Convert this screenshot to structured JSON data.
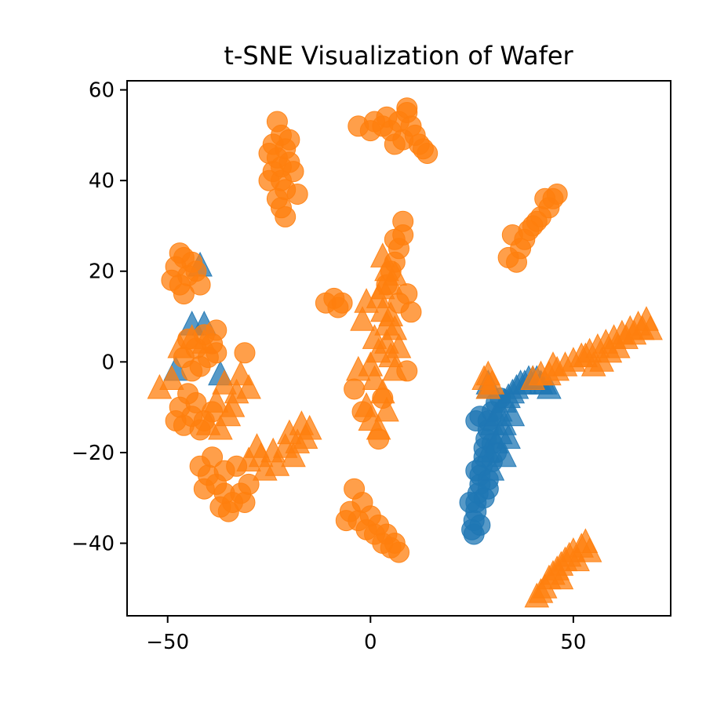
{
  "chart_data": {
    "type": "scatter",
    "title": "t-SNE Visualization of Wafer",
    "xlabel": "",
    "ylabel": "",
    "xlim": [
      -60,
      74
    ],
    "ylim": [
      -56,
      62
    ],
    "xticks": [
      -50,
      0,
      50
    ],
    "yticks": [
      -40,
      -20,
      0,
      20,
      40,
      60
    ],
    "xtick_labels": [
      "−50",
      "0",
      "50"
    ],
    "ytick_labels": [
      "−40",
      "−20",
      "0",
      "20",
      "40",
      "60"
    ],
    "grid": false,
    "legend": "none",
    "series": [
      {
        "color": "#1f77b4",
        "marker": "circle",
        "points": [
          [
            25,
            -37
          ],
          [
            25.5,
            -35
          ],
          [
            26,
            -33
          ],
          [
            26,
            -31
          ],
          [
            26.5,
            -29
          ],
          [
            27,
            -27
          ],
          [
            27,
            -25
          ],
          [
            27.5,
            -23
          ],
          [
            28,
            -21
          ],
          [
            28,
            -19
          ],
          [
            28.5,
            -17
          ],
          [
            29,
            -15
          ],
          [
            29,
            -13
          ],
          [
            26,
            -13
          ],
          [
            27,
            -12
          ],
          [
            30,
            -11
          ],
          [
            31,
            -9
          ],
          [
            32,
            -8
          ],
          [
            25.5,
            -38
          ],
          [
            27,
            -36
          ],
          [
            28,
            -30
          ],
          [
            29,
            -26
          ],
          [
            30,
            -22
          ],
          [
            24.5,
            -31
          ],
          [
            26,
            -24
          ],
          [
            29,
            -28
          ],
          [
            30,
            -18
          ],
          [
            31,
            -20
          ]
        ]
      },
      {
        "color": "#1f77b4",
        "marker": "triangle",
        "points": [
          [
            30,
            -14
          ],
          [
            31,
            -12
          ],
          [
            32,
            -11
          ],
          [
            33,
            -9
          ],
          [
            34,
            -8
          ],
          [
            35,
            -7
          ],
          [
            36,
            -6
          ],
          [
            37,
            -5
          ],
          [
            38,
            -5
          ],
          [
            39,
            -4
          ],
          [
            40,
            -4
          ],
          [
            41,
            -4
          ],
          [
            42,
            -5
          ],
          [
            43,
            -5
          ],
          [
            44,
            -6
          ],
          [
            29,
            -20
          ],
          [
            30,
            -24
          ],
          [
            31,
            -18
          ],
          [
            32,
            -16
          ],
          [
            33,
            -14
          ],
          [
            29,
            -6
          ],
          [
            29,
            -5
          ],
          [
            33,
            -21
          ],
          [
            35,
            -12
          ],
          [
            34,
            -17
          ],
          [
            -37,
            -3
          ],
          [
            -44,
            8
          ],
          [
            -48,
            -2
          ],
          [
            -42,
            21
          ],
          [
            -41,
            8
          ]
        ]
      },
      {
        "color": "#ff7f0e",
        "marker": "circle",
        "points": [
          [
            -23,
            53
          ],
          [
            -22,
            50
          ],
          [
            -24,
            48
          ],
          [
            -21,
            47
          ],
          [
            -23,
            45
          ],
          [
            -20,
            44
          ],
          [
            -24,
            42
          ],
          [
            -22,
            40
          ],
          [
            -21,
            38
          ],
          [
            -23,
            36
          ],
          [
            -22,
            34
          ],
          [
            -21,
            32
          ],
          [
            -25,
            46
          ],
          [
            -19,
            42
          ],
          [
            -20,
            49
          ],
          [
            -25,
            40
          ],
          [
            -18,
            37
          ],
          [
            -22,
            43
          ],
          [
            -3,
            52
          ],
          [
            0,
            51
          ],
          [
            3,
            52
          ],
          [
            5,
            51
          ],
          [
            7,
            53
          ],
          [
            9,
            55
          ],
          [
            10,
            52
          ],
          [
            11,
            50
          ],
          [
            12,
            48
          ],
          [
            13,
            47
          ],
          [
            8,
            49
          ],
          [
            6,
            48
          ],
          [
            1,
            53
          ],
          [
            9,
            56
          ],
          [
            14,
            46
          ],
          [
            4,
            54
          ],
          [
            36,
            22
          ],
          [
            37,
            25
          ],
          [
            38,
            27
          ],
          [
            39,
            29
          ],
          [
            40,
            30
          ],
          [
            42,
            32
          ],
          [
            44,
            34
          ],
          [
            45,
            36
          ],
          [
            46,
            37
          ],
          [
            43,
            36
          ],
          [
            34,
            23
          ],
          [
            35,
            28
          ],
          [
            41,
            31
          ],
          [
            -46,
            23
          ],
          [
            -48,
            21
          ],
          [
            -45,
            19
          ],
          [
            -47,
            17
          ],
          [
            -43,
            20
          ],
          [
            -44,
            22
          ],
          [
            -49,
            18
          ],
          [
            -46,
            15
          ],
          [
            -42,
            17
          ],
          [
            -47,
            24
          ],
          [
            -11,
            13
          ],
          [
            -9,
            14
          ],
          [
            -7,
            13
          ],
          [
            -8,
            12
          ],
          [
            8,
            31
          ],
          [
            8,
            28
          ],
          [
            7,
            25
          ],
          [
            6,
            22
          ],
          [
            5,
            20
          ],
          [
            4,
            17
          ],
          [
            9,
            15
          ],
          [
            10,
            11
          ],
          [
            7,
            13
          ],
          [
            6,
            27
          ],
          [
            -45,
            5
          ],
          [
            -43,
            3
          ],
          [
            -41,
            6
          ],
          [
            -39,
            4
          ],
          [
            -46,
            1
          ],
          [
            -44,
            -2
          ],
          [
            -42,
            -1
          ],
          [
            -40,
            1
          ],
          [
            -38,
            2
          ],
          [
            -45,
            -7
          ],
          [
            -47,
            -10
          ],
          [
            -43,
            -9
          ],
          [
            -48,
            -13
          ],
          [
            -44,
            -12
          ],
          [
            -41,
            -13
          ],
          [
            -39,
            -11
          ],
          [
            -46,
            -14
          ],
          [
            -42,
            -15
          ],
          [
            -31,
            2
          ],
          [
            -38,
            7
          ],
          [
            -42,
            -23
          ],
          [
            -40,
            -25
          ],
          [
            -38,
            -27
          ],
          [
            -36,
            -29
          ],
          [
            -34,
            -31
          ],
          [
            -32,
            -29
          ],
          [
            -30,
            -27
          ],
          [
            -37,
            -32
          ],
          [
            -35,
            -33
          ],
          [
            -39,
            -21
          ],
          [
            -33,
            -23
          ],
          [
            -41,
            -28
          ],
          [
            -36,
            -24
          ],
          [
            -31,
            -31
          ],
          [
            -5,
            -33
          ],
          [
            -3,
            -35
          ],
          [
            -1,
            -37
          ],
          [
            1,
            -38
          ],
          [
            3,
            -40
          ],
          [
            5,
            -41
          ],
          [
            7,
            -42
          ],
          [
            -4,
            -28
          ],
          [
            -2,
            -31
          ],
          [
            2,
            -36
          ],
          [
            4,
            -38
          ],
          [
            6,
            -40
          ],
          [
            0,
            -34
          ],
          [
            -6,
            -35
          ],
          [
            -4,
            -6
          ],
          [
            2,
            -17
          ],
          [
            3,
            -8
          ],
          [
            9,
            -2
          ],
          [
            -2,
            -11
          ]
        ]
      },
      {
        "color": "#ff7f0e",
        "marker": "triangle",
        "points": [
          [
            50,
            0
          ],
          [
            52,
            1
          ],
          [
            54,
            2
          ],
          [
            56,
            3
          ],
          [
            58,
            4
          ],
          [
            60,
            5
          ],
          [
            62,
            6
          ],
          [
            64,
            7
          ],
          [
            66,
            8
          ],
          [
            68,
            9
          ],
          [
            55,
            -1
          ],
          [
            57,
            0
          ],
          [
            59,
            2
          ],
          [
            61,
            3
          ],
          [
            63,
            5
          ],
          [
            65,
            6
          ],
          [
            67,
            7
          ],
          [
            48,
            -1
          ],
          [
            46,
            -2
          ],
          [
            44,
            -3
          ],
          [
            42,
            -3
          ],
          [
            40,
            -4
          ],
          [
            53,
            1
          ],
          [
            45,
            -1
          ],
          [
            69,
            7
          ],
          [
            43,
            -50
          ],
          [
            44,
            -48
          ],
          [
            45,
            -47
          ],
          [
            46,
            -46
          ],
          [
            47,
            -45
          ],
          [
            48,
            -44
          ],
          [
            49,
            -43
          ],
          [
            50,
            -42
          ],
          [
            52,
            -41
          ],
          [
            53,
            -40
          ],
          [
            41,
            -52
          ],
          [
            42,
            -51
          ],
          [
            51,
            -44
          ],
          [
            54,
            -42
          ],
          [
            47,
            -48
          ],
          [
            3,
            23
          ],
          [
            4,
            20
          ],
          [
            5,
            17
          ],
          [
            2,
            14
          ],
          [
            3,
            11
          ],
          [
            4,
            8
          ],
          [
            1,
            5
          ],
          [
            2,
            2
          ],
          [
            0,
            -1
          ],
          [
            1,
            -4
          ],
          [
            3,
            -7
          ],
          [
            -1,
            -10
          ],
          [
            0,
            -13
          ],
          [
            2,
            -15
          ],
          [
            4,
            4
          ],
          [
            5,
            1
          ],
          [
            6,
            -2
          ],
          [
            3,
            16
          ],
          [
            5,
            10
          ],
          [
            6,
            7
          ],
          [
            -2,
            9
          ],
          [
            7,
            3
          ],
          [
            -3,
            -2
          ],
          [
            4,
            -11
          ],
          [
            -1,
            13
          ],
          [
            6,
            19
          ],
          [
            -30,
            -22
          ],
          [
            -27,
            -21
          ],
          [
            -24,
            -20
          ],
          [
            -21,
            -19
          ],
          [
            -18,
            -18
          ],
          [
            -16,
            -17
          ],
          [
            -26,
            -24
          ],
          [
            -23,
            -23
          ],
          [
            -19,
            -21
          ],
          [
            -15,
            -15
          ],
          [
            -28,
            -19
          ],
          [
            -20,
            -16
          ],
          [
            -17,
            -14
          ],
          [
            -52,
            -6
          ],
          [
            -49,
            -4
          ],
          [
            -36,
            -5
          ],
          [
            -33,
            -7
          ],
          [
            -35,
            -12
          ],
          [
            -38,
            -9
          ],
          [
            -32,
            -3
          ],
          [
            -40,
            -14
          ],
          [
            -37,
            -15
          ],
          [
            -34,
            -10
          ],
          [
            -30,
            -6
          ],
          [
            -47,
            3
          ],
          [
            -44,
            5
          ],
          [
            -41,
            4
          ],
          [
            29,
            -6
          ],
          [
            30,
            -5
          ],
          [
            28,
            -4
          ],
          [
            29,
            -3
          ]
        ]
      }
    ]
  }
}
